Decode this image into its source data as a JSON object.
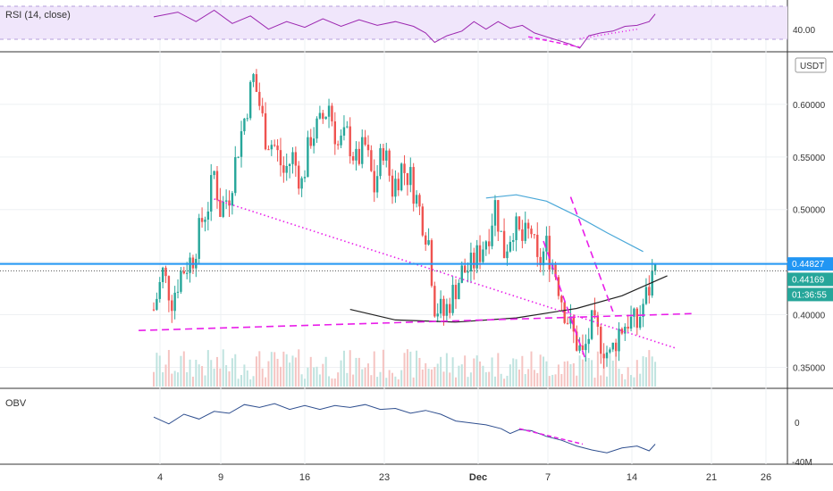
{
  "pair_currency": "USDT",
  "rsi_panel": {
    "label": "RSI (14, close)",
    "tick_labels": [
      "40.00"
    ],
    "band_fill": "#f0e6fb",
    "line_color": "#9c27b0"
  },
  "obv_panel": {
    "label": "OBV",
    "tick_labels": [
      "0",
      "-40M"
    ],
    "line_color": "#2f4f8f"
  },
  "price_axis": {
    "tick_labels": [
      "0.60000",
      "0.55000",
      "0.50000",
      "0.45000",
      "0.40000",
      "0.35000"
    ],
    "current_price_label": "0.44169",
    "horizontal_line_label": "0.44827",
    "countdown_label": "01:36:55",
    "horizontal_line_color": "#2196f3",
    "up_color": "#26a69a",
    "down_color": "#ef5350",
    "trendline_color": "#e91ee9"
  },
  "time_axis": {
    "tick_labels": [
      "4",
      "9",
      "16",
      "23",
      "Dec",
      "7",
      "14",
      "21",
      "26"
    ]
  },
  "chart_data": [
    {
      "type": "candlestick",
      "panel": "price",
      "y_ticks": [
        0.35,
        0.4,
        0.45,
        0.5,
        0.55,
        0.6
      ],
      "ylim": [
        0.33,
        0.65
      ],
      "x_ticks": [
        "4",
        "9",
        "16",
        "23",
        "Dec",
        "7",
        "14",
        "21",
        "26"
      ],
      "price_path": [
        [
          0,
          0.405
        ],
        [
          3,
          0.44
        ],
        [
          6,
          0.415
        ],
        [
          9,
          0.44
        ],
        [
          13,
          0.455
        ],
        [
          16,
          0.49
        ],
        [
          18,
          0.505
        ],
        [
          20,
          0.535
        ],
        [
          22,
          0.5
        ],
        [
          25,
          0.515
        ],
        [
          28,
          0.56
        ],
        [
          31,
          0.6
        ],
        [
          33,
          0.625
        ],
        [
          35,
          0.6
        ],
        [
          37,
          0.57
        ],
        [
          40,
          0.56
        ],
        [
          43,
          0.535
        ],
        [
          46,
          0.55
        ],
        [
          49,
          0.525
        ],
        [
          52,
          0.57
        ],
        [
          55,
          0.58
        ],
        [
          58,
          0.6
        ],
        [
          61,
          0.56
        ],
        [
          64,
          0.57
        ],
        [
          67,
          0.545
        ],
        [
          70,
          0.56
        ],
        [
          73,
          0.52
        ],
        [
          76,
          0.56
        ],
        [
          79,
          0.52
        ],
        [
          82,
          0.54
        ],
        [
          85,
          0.53
        ],
        [
          88,
          0.5
        ],
        [
          91,
          0.47
        ],
        [
          93,
          0.41
        ],
        [
          96,
          0.4
        ],
        [
          99,
          0.42
        ],
        [
          102,
          0.44
        ],
        [
          105,
          0.445
        ],
        [
          108,
          0.46
        ],
        [
          111,
          0.48
        ],
        [
          113,
          0.505
        ],
        [
          116,
          0.46
        ],
        [
          119,
          0.485
        ],
        [
          122,
          0.47
        ],
        [
          125,
          0.48
        ],
        [
          127,
          0.445
        ],
        [
          130,
          0.465
        ],
        [
          133,
          0.44
        ],
        [
          136,
          0.405
        ],
        [
          139,
          0.38
        ],
        [
          142,
          0.36
        ],
        [
          145,
          0.39
        ],
        [
          148,
          0.375
        ],
        [
          151,
          0.36
        ],
        [
          154,
          0.385
        ],
        [
          157,
          0.395
        ],
        [
          160,
          0.39
        ],
        [
          162,
          0.41
        ],
        [
          164,
          0.425
        ],
        [
          166,
          0.448
        ]
      ],
      "horizontal_line": 0.44827,
      "last_close": 0.44169,
      "moving_average": [
        [
          110,
          0.511
        ],
        [
          120,
          0.514
        ],
        [
          130,
          0.508
        ],
        [
          140,
          0.494
        ],
        [
          150,
          0.478
        ],
        [
          162,
          0.46
        ]
      ],
      "arc": [
        [
          65,
          0.405
        ],
        [
          80,
          0.395
        ],
        [
          100,
          0.393
        ],
        [
          120,
          0.397
        ],
        [
          140,
          0.406
        ],
        [
          155,
          0.418
        ],
        [
          170,
          0.437
        ]
      ],
      "trendlines": [
        {
          "style": "dotted",
          "from": [
            20,
            0.51
          ],
          "to": [
            173,
            0.368
          ]
        },
        {
          "style": "dashed",
          "from": [
            -5,
            0.385
          ],
          "to": [
            178,
            0.401
          ]
        },
        {
          "style": "dashed",
          "from": [
            138,
            0.512
          ],
          "to": [
            152,
            0.403
          ]
        },
        {
          "style": "dashed",
          "from": [
            129,
            0.47
          ],
          "to": [
            143,
            0.357
          ]
        }
      ]
    },
    {
      "type": "line",
      "panel": "rsi",
      "y_ticks": [
        40
      ],
      "ylim": [
        30,
        80
      ],
      "series": [
        {
          "name": "",
          "values": [
            [
              0,
              65
            ],
            [
              8,
              70
            ],
            [
              14,
              60
            ],
            [
              20,
              72
            ],
            [
              26,
              58
            ],
            [
              32,
              66
            ],
            [
              38,
              52
            ],
            [
              44,
              60
            ],
            [
              50,
              54
            ],
            [
              56,
              63
            ],
            [
              62,
              55
            ],
            [
              68,
              62
            ],
            [
              74,
              56
            ],
            [
              80,
              60
            ],
            [
              86,
              55
            ],
            [
              90,
              48
            ],
            [
              93,
              38
            ],
            [
              97,
              45
            ],
            [
              102,
              50
            ],
            [
              106,
              60
            ],
            [
              110,
              52
            ],
            [
              114,
              60
            ],
            [
              118,
              53
            ],
            [
              122,
              56
            ],
            [
              126,
              48
            ],
            [
              130,
              44
            ],
            [
              134,
              40
            ],
            [
              138,
              36
            ],
            [
              141,
              32
            ],
            [
              144,
              45
            ],
            [
              148,
              48
            ],
            [
              152,
              50
            ],
            [
              156,
              55
            ],
            [
              160,
              56
            ],
            [
              164,
              60
            ],
            [
              166,
              68
            ]
          ]
        }
      ]
    },
    {
      "type": "line",
      "panel": "obv",
      "y_ticks": [
        0,
        -40
      ],
      "ylim": [
        -45,
        30
      ],
      "series": [
        {
          "name": "",
          "values": [
            [
              0,
              2
            ],
            [
              5,
              -5
            ],
            [
              10,
              5
            ],
            [
              15,
              0
            ],
            [
              20,
              8
            ],
            [
              25,
              6
            ],
            [
              30,
              15
            ],
            [
              35,
              12
            ],
            [
              40,
              16
            ],
            [
              45,
              10
            ],
            [
              50,
              14
            ],
            [
              55,
              10
            ],
            [
              60,
              14
            ],
            [
              65,
              12
            ],
            [
              70,
              15
            ],
            [
              75,
              10
            ],
            [
              80,
              11
            ],
            [
              85,
              6
            ],
            [
              90,
              9
            ],
            [
              95,
              5
            ],
            [
              100,
              -2
            ],
            [
              105,
              -4
            ],
            [
              110,
              -6
            ],
            [
              115,
              -10
            ],
            [
              118,
              -15
            ],
            [
              121,
              -11
            ],
            [
              125,
              -12
            ],
            [
              130,
              -18
            ],
            [
              135,
              -22
            ],
            [
              140,
              -28
            ],
            [
              145,
              -32
            ],
            [
              150,
              -35
            ],
            [
              155,
              -30
            ],
            [
              160,
              -28
            ],
            [
              164,
              -33
            ],
            [
              166,
              -26
            ]
          ]
        }
      ]
    }
  ]
}
